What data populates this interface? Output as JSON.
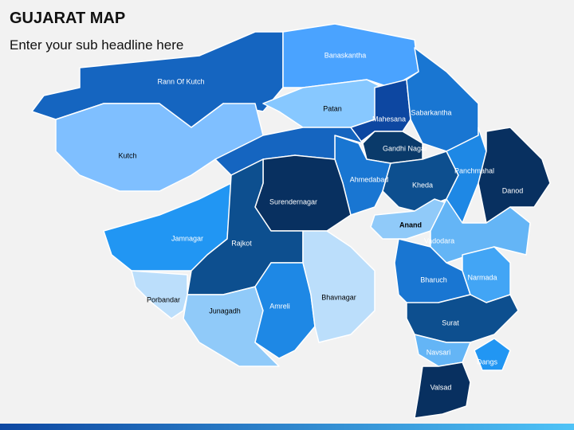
{
  "header": {
    "title": "GUJARAT MAP",
    "subtitle": "Enter your sub headline here"
  },
  "regions": [
    "Rann Of Kutch",
    "Kutch",
    "Banaskantha",
    "Patan",
    "Mahesana",
    "Sabarkantha",
    "Gandhi Nagar",
    "Ahmedabad",
    "Kheda",
    "Surendernagar",
    "Panchmahal",
    "Danod",
    "Anand",
    "Vadodara",
    "Jamnagar",
    "Rajkot",
    "Porbandar",
    "Junagadh",
    "Amreli",
    "Bhavnagar",
    "Bharuch",
    "Narmada",
    "Surat",
    "Navsari",
    "Dangs",
    "Valsad"
  ]
}
